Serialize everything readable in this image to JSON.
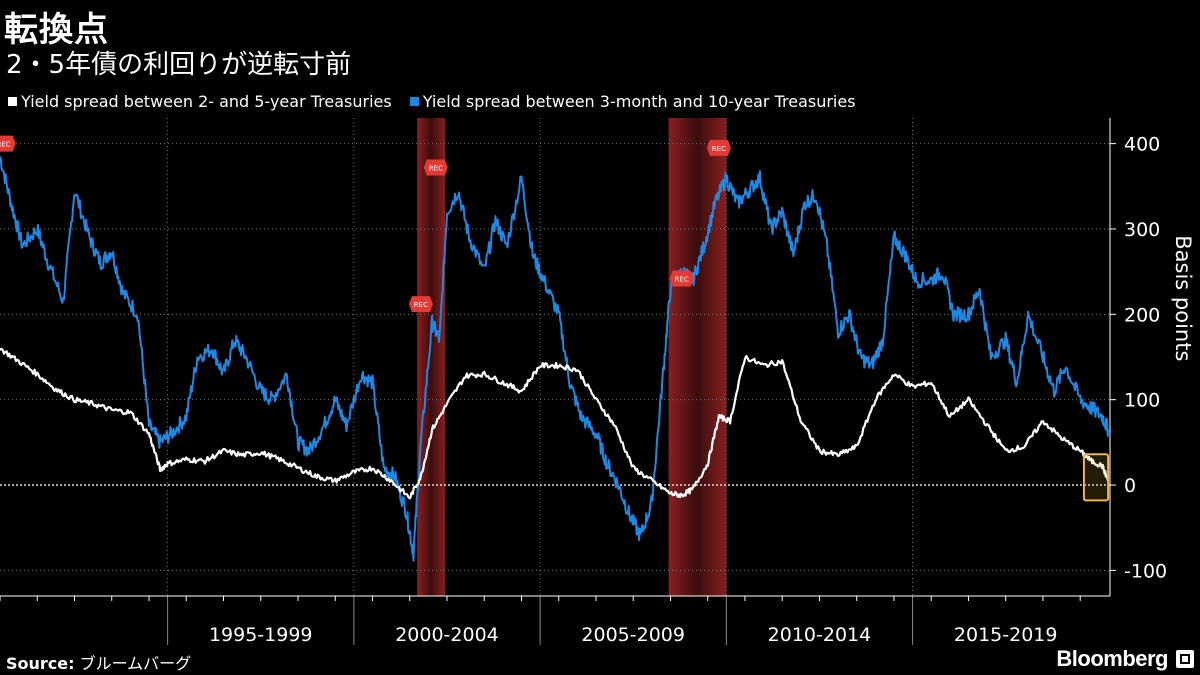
{
  "header": {
    "title": "転換点",
    "subtitle": "2・5年債の利回りが逆転寸前"
  },
  "legend": [
    {
      "label": "Yield spread between 2- and 5-year Treasuries",
      "color": "#ffffff"
    },
    {
      "label": "Yield spread between 3-month and 10-year Treasuries",
      "color": "#1e88e5"
    }
  ],
  "footer": {
    "source_label": "Source:",
    "source_value": "ブルームバーグ",
    "brand": "Bloomberg"
  },
  "colors": {
    "background": "#000000",
    "blue_series": "#1e88e5",
    "white_series": "#ffffff",
    "recession_band": "#7a1c1c",
    "highlight_box": "#f0b44c",
    "rec_flag": "#e53935"
  },
  "chart_data": {
    "type": "line",
    "ylabel": "Basis points",
    "ylim": [
      -130,
      430
    ],
    "yticks": [
      -100,
      0,
      100,
      200,
      300,
      400
    ],
    "xlim": [
      1990.0,
      2019.8
    ],
    "period_labels": [
      "1995-1999",
      "2000-2004",
      "2005-2009",
      "2010-2014",
      "2015-2019"
    ],
    "period_centers": [
      1997.0,
      2002.0,
      2007.0,
      2012.0,
      2017.0
    ],
    "period_boundaries": [
      1994.5,
      1999.5,
      2004.5,
      2009.5,
      2014.5
    ],
    "recessions": [
      [
        2001.2,
        2001.95
      ],
      [
        2007.95,
        2009.5
      ]
    ],
    "rec_markers": [
      {
        "x": 1990.1,
        "y": 400,
        "label": "REC"
      },
      {
        "x": 2001.3,
        "y": 212,
        "label": "REC"
      },
      {
        "x": 2001.7,
        "y": 372,
        "label": "REC"
      },
      {
        "x": 2008.3,
        "y": 242,
        "label": "REC"
      },
      {
        "x": 2009.3,
        "y": 395,
        "label": "REC"
      }
    ],
    "highlight": {
      "x": [
        2019.1,
        2019.75
      ],
      "y": [
        -18,
        36
      ]
    },
    "zero_line": 0,
    "series": [
      {
        "name": "Yield spread between 2- and 5-year Treasuries",
        "color": "#ffffff",
        "x": [
          1990.0,
          1990.5,
          1991.0,
          1991.5,
          1992.0,
          1992.5,
          1993.0,
          1993.5,
          1994.0,
          1994.3,
          1994.5,
          1995.0,
          1995.5,
          1996.0,
          1996.5,
          1997.0,
          1997.5,
          1998.0,
          1998.5,
          1999.0,
          1999.5,
          2000.0,
          2000.5,
          2001.0,
          2001.3,
          2001.6,
          2002.0,
          2002.5,
          2003.0,
          2003.5,
          2004.0,
          2004.5,
          2005.0,
          2005.5,
          2006.0,
          2006.5,
          2007.0,
          2007.5,
          2008.0,
          2008.3,
          2008.6,
          2009.0,
          2009.3,
          2009.6,
          2010.0,
          2010.5,
          2011.0,
          2011.5,
          2012.0,
          2012.5,
          2013.0,
          2013.5,
          2014.0,
          2014.5,
          2015.0,
          2015.5,
          2016.0,
          2016.5,
          2017.0,
          2017.5,
          2018.0,
          2018.5,
          2019.0,
          2019.3,
          2019.6,
          2019.75
        ],
        "values": [
          160,
          145,
          130,
          112,
          100,
          95,
          88,
          85,
          60,
          18,
          25,
          30,
          28,
          40,
          35,
          38,
          30,
          20,
          10,
          5,
          15,
          20,
          5,
          -15,
          10,
          65,
          95,
          128,
          130,
          120,
          110,
          140,
          140,
          135,
          100,
          70,
          20,
          5,
          -10,
          -12,
          -5,
          25,
          80,
          75,
          150,
          140,
          145,
          75,
          40,
          35,
          45,
          100,
          130,
          115,
          120,
          80,
          100,
          70,
          40,
          45,
          75,
          55,
          40,
          28,
          22,
          5
        ]
      },
      {
        "name": "Yield spread between 3-month and 10-year Treasuries",
        "color": "#1e88e5",
        "x": [
          1990.0,
          1990.3,
          1990.6,
          1991.0,
          1991.3,
          1991.7,
          1992.0,
          1992.4,
          1992.7,
          1993.0,
          1993.3,
          1993.7,
          1994.0,
          1994.3,
          1994.6,
          1995.0,
          1995.3,
          1995.7,
          1996.0,
          1996.3,
          1996.6,
          1997.0,
          1997.3,
          1997.7,
          1998.0,
          1998.3,
          1998.7,
          1999.0,
          1999.3,
          1999.7,
          2000.0,
          2000.3,
          2000.6,
          2000.9,
          2001.1,
          2001.3,
          2001.6,
          2001.8,
          2002.0,
          2002.3,
          2002.6,
          2003.0,
          2003.3,
          2003.6,
          2004.0,
          2004.3,
          2004.6,
          2005.0,
          2005.3,
          2005.6,
          2006.0,
          2006.3,
          2006.6,
          2006.9,
          2007.2,
          2007.5,
          2007.8,
          2008.0,
          2008.3,
          2008.6,
          2008.9,
          2009.2,
          2009.5,
          2009.8,
          2010.1,
          2010.4,
          2010.7,
          2011.0,
          2011.3,
          2011.6,
          2011.9,
          2012.2,
          2012.5,
          2012.8,
          2013.1,
          2013.4,
          2013.7,
          2014.0,
          2014.3,
          2014.6,
          2015.0,
          2015.3,
          2015.6,
          2016.0,
          2016.3,
          2016.6,
          2017.0,
          2017.3,
          2017.6,
          2018.0,
          2018.3,
          2018.6,
          2019.0,
          2019.3,
          2019.6,
          2019.75
        ],
        "values": [
          385,
          330,
          280,
          300,
          260,
          215,
          345,
          290,
          260,
          275,
          225,
          200,
          70,
          50,
          60,
          80,
          150,
          160,
          130,
          170,
          150,
          110,
          100,
          130,
          50,
          40,
          70,
          100,
          70,
          130,
          120,
          20,
          10,
          -30,
          -80,
          50,
          190,
          170,
          320,
          345,
          290,
          250,
          310,
          280,
          360,
          270,
          240,
          200,
          120,
          80,
          60,
          25,
          0,
          -35,
          -60,
          -20,
          130,
          230,
          250,
          240,
          280,
          330,
          360,
          330,
          345,
          360,
          300,
          320,
          270,
          330,
          340,
          280,
          180,
          200,
          150,
          140,
          170,
          290,
          270,
          240,
          240,
          250,
          200,
          200,
          230,
          150,
          170,
          120,
          200,
          150,
          110,
          140,
          100,
          90,
          80,
          65
        ]
      }
    ]
  }
}
